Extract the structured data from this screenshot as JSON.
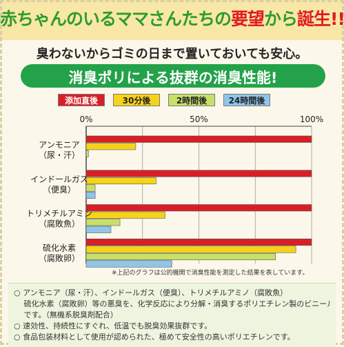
{
  "header": {
    "headline_pre": "赤ちゃんのいるママさんたちの",
    "headline_em1": "要望",
    "headline_mid": "から",
    "headline_em2": "誕生!!",
    "subhead": "臭わないからゴミの日まで置いておいても安心。",
    "banner": "消臭ポリによる抜群の消臭性能!"
  },
  "colors": {
    "red": "#d91f26",
    "yellow": "#f6d31a",
    "green": "#c8e06a",
    "blue": "#8fc5e8",
    "banner_green": "#23a24a"
  },
  "chart_data": {
    "type": "bar",
    "orientation": "horizontal",
    "xlim": [
      0,
      100
    ],
    "x_ticks": [
      "0%",
      "50%",
      "100%"
    ],
    "categories": [
      {
        "name": "アンモニア",
        "sub": "（尿・汗）"
      },
      {
        "name": "インドールガス",
        "sub": "（便臭）"
      },
      {
        "name": "トリメチルアミン",
        "sub": "（腐敗魚）"
      },
      {
        "name": "硫化水素",
        "sub": "（腐敗卵）"
      }
    ],
    "series": [
      {
        "name": "添加直後",
        "color": "#d91f26",
        "values": [
          100,
          100,
          100,
          100
        ]
      },
      {
        "name": "30分後",
        "color": "#f6d31a",
        "values": [
          22,
          31,
          35,
          93
        ]
      },
      {
        "name": "2時間後",
        "color": "#c8e06a",
        "values": [
          1,
          4,
          15,
          84
        ]
      },
      {
        "name": "24時間後",
        "color": "#8fc5e8",
        "values": [
          0,
          4,
          11,
          38
        ]
      }
    ],
    "grid": true,
    "legend_position": "top"
  },
  "caption": "※上記のグラフは公的機関で消臭性能を測定した結果を表しています。",
  "notes": [
    "○ アンモニア（尿・汗）、インドールガス（便臭）、トリメチルアミノ（腐敗魚）",
    "　 硫化水素（腐敗卵）等の悪臭を、化学反応により分解・消臭するポリエチレン製のビニール袋",
    "　 です。（無機系脱臭剤配合）",
    "○ 速効性、持続性にすぐれ、低温でも脱臭効果抜群です。",
    "○ 食品包装材料として使用が認められた、極めて安全性の高いポリエチレンです。"
  ]
}
